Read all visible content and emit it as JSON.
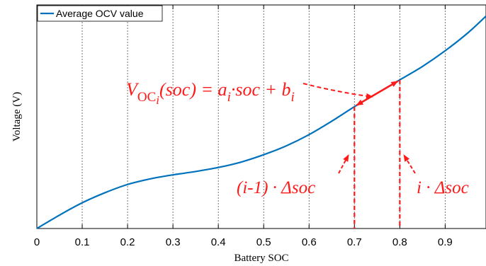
{
  "chart_data": {
    "type": "line",
    "xlabel": "Battery SOC",
    "ylabel": "Voltage (V)",
    "xlim": [
      0,
      0.99
    ],
    "ylim": [
      0,
      1
    ],
    "xticks": [
      "0",
      "0.1",
      "0.2",
      "0.3",
      "0.4",
      "0.5",
      "0.6",
      "0.7",
      "0.8",
      "0.9"
    ],
    "yticks_visible": false,
    "grid": "vertical dotted",
    "legend_position": "top-left",
    "series": [
      {
        "name": "Average OCV value",
        "color": "#0072bd",
        "x": [
          0,
          0.05,
          0.1,
          0.15,
          0.2,
          0.25,
          0.3,
          0.35,
          0.4,
          0.45,
          0.5,
          0.55,
          0.6,
          0.65,
          0.7,
          0.75,
          0.8,
          0.85,
          0.9,
          0.95,
          0.99
        ],
        "y": [
          0.0,
          0.06,
          0.115,
          0.16,
          0.197,
          0.222,
          0.24,
          0.255,
          0.273,
          0.297,
          0.33,
          0.37,
          0.42,
          0.48,
          0.545,
          0.605,
          0.665,
          0.725,
          0.795,
          0.875,
          0.95
        ]
      }
    ],
    "annotations": {
      "color": "#ff1a1a",
      "segment": {
        "x": [
          0.7,
          0.8
        ]
      },
      "equation": {
        "V": "V",
        "sub_oc": "OC",
        "sub_i": "i",
        "lhs_rest": "(soc) = a",
        "a_sub": "i",
        "mid": "·soc + b",
        "b_sub": "i"
      },
      "left_marker": "(i-1) · Δsoc",
      "right_marker": "i · Δsoc"
    }
  }
}
